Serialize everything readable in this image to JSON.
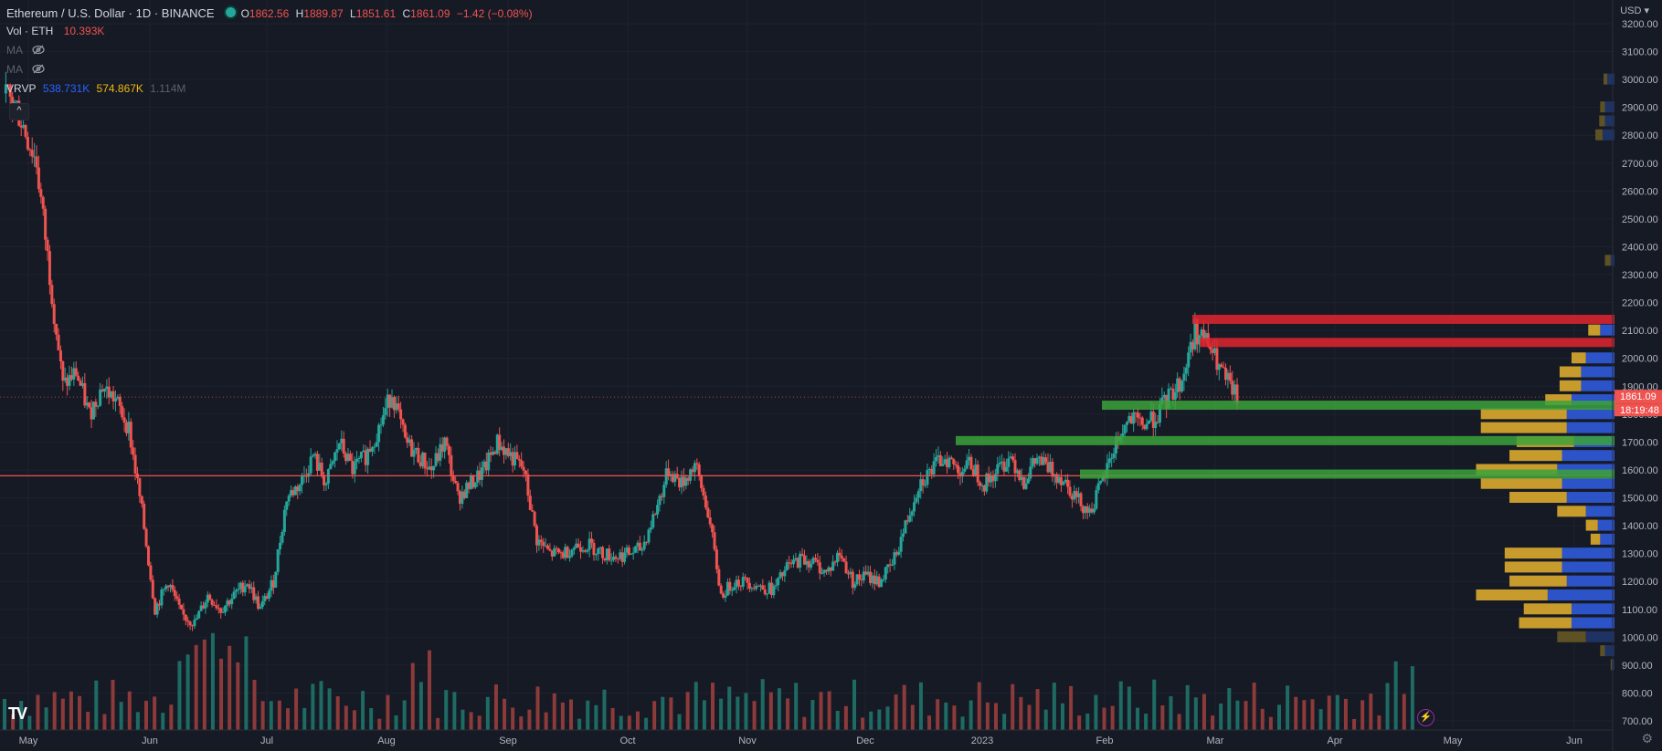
{
  "header": {
    "symbol": "Ethereum / U.S. Dollar · 1D · BINANCE",
    "open_label": "O",
    "open": "1862.56",
    "high_label": "H",
    "high": "1889.87",
    "low_label": "L",
    "low": "1851.61",
    "close_label": "C",
    "close": "1861.09",
    "change": "−1.42 (−0.08%)"
  },
  "indicators": {
    "vol_label": "Vol · ETH",
    "vol_value": "10.393K",
    "ma1_label": "MA",
    "ma2_label": "MA",
    "vrvp_label": "VRVP",
    "vrvp_up": "538.731K",
    "vrvp_down": "574.867K",
    "vrvp_total": "1.114M",
    "collapse_glyph": "^"
  },
  "currency": "USD ▾",
  "price_tag": "1861.09",
  "countdown": "18:19:48",
  "colors": {
    "background": "#161a25",
    "up": "#26a69a",
    "down": "#ef5350",
    "vol_up": "#1e6b64",
    "vol_down": "#8c3a3a",
    "vp_up": "#2d53c8",
    "vp_down": "#c79b2c",
    "vp_down_dim": "#5e5124",
    "vp_up_dim": "#1f3264",
    "green_zone": "#3ca23c",
    "red_zone": "#e0262f"
  },
  "chart_data": {
    "type": "candlestick",
    "title": "Ethereum / U.S. Dollar · 1D · BINANCE",
    "y_ticks": [
      "3200.00",
      "3100.00",
      "3000.00",
      "2900.00",
      "2800.00",
      "2700.00",
      "2600.00",
      "2500.00",
      "2400.00",
      "2300.00",
      "2200.00",
      "2100.00",
      "2000.00",
      "1900.00",
      "1800.00",
      "1700.00",
      "1600.00",
      "1500.00",
      "1400.00",
      "1300.00",
      "1200.00",
      "1100.00",
      "1000.00",
      "900.00",
      "800.00",
      "700.00"
    ],
    "ylim": [
      680,
      3250
    ],
    "x_ticks": [
      "May",
      "Jun",
      "Jul",
      "Aug",
      "Sep",
      "Oct",
      "Nov",
      "Dec",
      "2023",
      "Feb",
      "Mar",
      "Apr",
      "May",
      "Jun"
    ],
    "horizontal_line_price": 1579,
    "last_close": 1861.09,
    "price_path": [
      [
        0,
        2950
      ],
      [
        10,
        2900
      ],
      [
        25,
        2700
      ],
      [
        35,
        2300
      ],
      [
        45,
        1900
      ],
      [
        55,
        1950
      ],
      [
        65,
        1800
      ],
      [
        75,
        1900
      ],
      [
        85,
        1850
      ],
      [
        95,
        1750
      ],
      [
        105,
        1450
      ],
      [
        115,
        1100
      ],
      [
        125,
        1200
      ],
      [
        135,
        1080
      ],
      [
        145,
        1050
      ],
      [
        155,
        1150
      ],
      [
        165,
        1100
      ],
      [
        175,
        1150
      ],
      [
        185,
        1200
      ],
      [
        195,
        1100
      ],
      [
        205,
        1200
      ],
      [
        215,
        1500
      ],
      [
        225,
        1550
      ],
      [
        235,
        1650
      ],
      [
        245,
        1550
      ],
      [
        255,
        1700
      ],
      [
        265,
        1600
      ],
      [
        275,
        1650
      ],
      [
        285,
        1750
      ],
      [
        295,
        1880
      ],
      [
        305,
        1700
      ],
      [
        315,
        1650
      ],
      [
        325,
        1600
      ],
      [
        335,
        1700
      ],
      [
        345,
        1500
      ],
      [
        355,
        1550
      ],
      [
        365,
        1600
      ],
      [
        375,
        1700
      ],
      [
        385,
        1650
      ],
      [
        395,
        1600
      ],
      [
        405,
        1350
      ],
      [
        415,
        1300
      ],
      [
        425,
        1300
      ],
      [
        435,
        1330
      ],
      [
        445,
        1330
      ],
      [
        455,
        1300
      ],
      [
        465,
        1290
      ],
      [
        475,
        1300
      ],
      [
        485,
        1320
      ],
      [
        495,
        1450
      ],
      [
        505,
        1600
      ],
      [
        515,
        1550
      ],
      [
        525,
        1620
      ],
      [
        535,
        1450
      ],
      [
        545,
        1150
      ],
      [
        555,
        1200
      ],
      [
        565,
        1200
      ],
      [
        575,
        1180
      ],
      [
        585,
        1170
      ],
      [
        595,
        1250
      ],
      [
        605,
        1280
      ],
      [
        615,
        1270
      ],
      [
        625,
        1230
      ],
      [
        635,
        1300
      ],
      [
        645,
        1200
      ],
      [
        655,
        1220
      ],
      [
        665,
        1200
      ],
      [
        675,
        1260
      ],
      [
        685,
        1400
      ],
      [
        695,
        1550
      ],
      [
        705,
        1600
      ],
      [
        715,
        1650
      ],
      [
        725,
        1600
      ],
      [
        735,
        1620
      ],
      [
        745,
        1550
      ],
      [
        755,
        1600
      ],
      [
        765,
        1650
      ],
      [
        775,
        1560
      ],
      [
        785,
        1640
      ],
      [
        795,
        1600
      ],
      [
        805,
        1570
      ],
      [
        815,
        1500
      ],
      [
        825,
        1450
      ],
      [
        835,
        1560
      ],
      [
        845,
        1700
      ],
      [
        855,
        1780
      ],
      [
        865,
        1760
      ],
      [
        875,
        1790
      ],
      [
        885,
        1860
      ],
      [
        895,
        1920
      ],
      [
        905,
        2100
      ],
      [
        915,
        2050
      ],
      [
        925,
        1950
      ],
      [
        935,
        1870
      ],
      [
        937,
        1861
      ]
    ],
    "volume_bars": 170,
    "volume_profile": {
      "rows": [
        {
          "price": 3000,
          "up": 0.15,
          "down": 0.08
        },
        {
          "price": 2900,
          "up": 0.2,
          "down": 0.1
        },
        {
          "price": 2850,
          "up": 0.2,
          "down": 0.12
        },
        {
          "price": 2800,
          "up": 0.25,
          "down": 0.15
        },
        {
          "price": 2350,
          "up": 0.08,
          "down": 0.12
        },
        {
          "price": 2100,
          "up": 0.3,
          "down": 0.25
        },
        {
          "price": 2000,
          "up": 0.6,
          "down": 0.3
        },
        {
          "price": 1950,
          "up": 0.7,
          "down": 0.45
        },
        {
          "price": 1900,
          "up": 0.7,
          "down": 0.45
        },
        {
          "price": 1850,
          "up": 0.9,
          "down": 0.55
        },
        {
          "price": 1800,
          "up": 1.0,
          "down": 1.8
        },
        {
          "price": 1750,
          "up": 1.0,
          "down": 1.8
        },
        {
          "price": 1700,
          "up": 0.85,
          "down": 1.2
        },
        {
          "price": 1650,
          "up": 1.1,
          "down": 1.1
        },
        {
          "price": 1600,
          "up": 1.2,
          "down": 1.7
        },
        {
          "price": 1550,
          "up": 1.1,
          "down": 1.7
        },
        {
          "price": 1500,
          "up": 1.0,
          "down": 1.2
        },
        {
          "price": 1450,
          "up": 0.6,
          "down": 0.6
        },
        {
          "price": 1400,
          "up": 0.35,
          "down": 0.25
        },
        {
          "price": 1350,
          "up": 0.3,
          "down": 0.2
        },
        {
          "price": 1300,
          "up": 1.1,
          "down": 1.2
        },
        {
          "price": 1250,
          "up": 1.1,
          "down": 1.2
        },
        {
          "price": 1200,
          "up": 1.0,
          "down": 1.2
        },
        {
          "price": 1150,
          "up": 1.4,
          "down": 1.5
        },
        {
          "price": 1100,
          "up": 0.9,
          "down": 1.0
        },
        {
          "price": 1050,
          "up": 0.9,
          "down": 1.1
        },
        {
          "price": 1000,
          "up": 0.6,
          "down": 0.6
        },
        {
          "price": 950,
          "up": 0.2,
          "down": 0.1
        },
        {
          "price": 900,
          "up": 0.05,
          "down": 0.03
        }
      ]
    },
    "zones": [
      {
        "kind": "red",
        "price": 2140,
        "x_from": 1305
      },
      {
        "kind": "red",
        "price": 2057,
        "x_from": 1313
      },
      {
        "kind": "green",
        "price": 1832,
        "x_from": 1206
      },
      {
        "kind": "green",
        "price": 1705,
        "x_from": 1046
      },
      {
        "kind": "green",
        "price": 1585,
        "x_from": 1182
      }
    ]
  }
}
